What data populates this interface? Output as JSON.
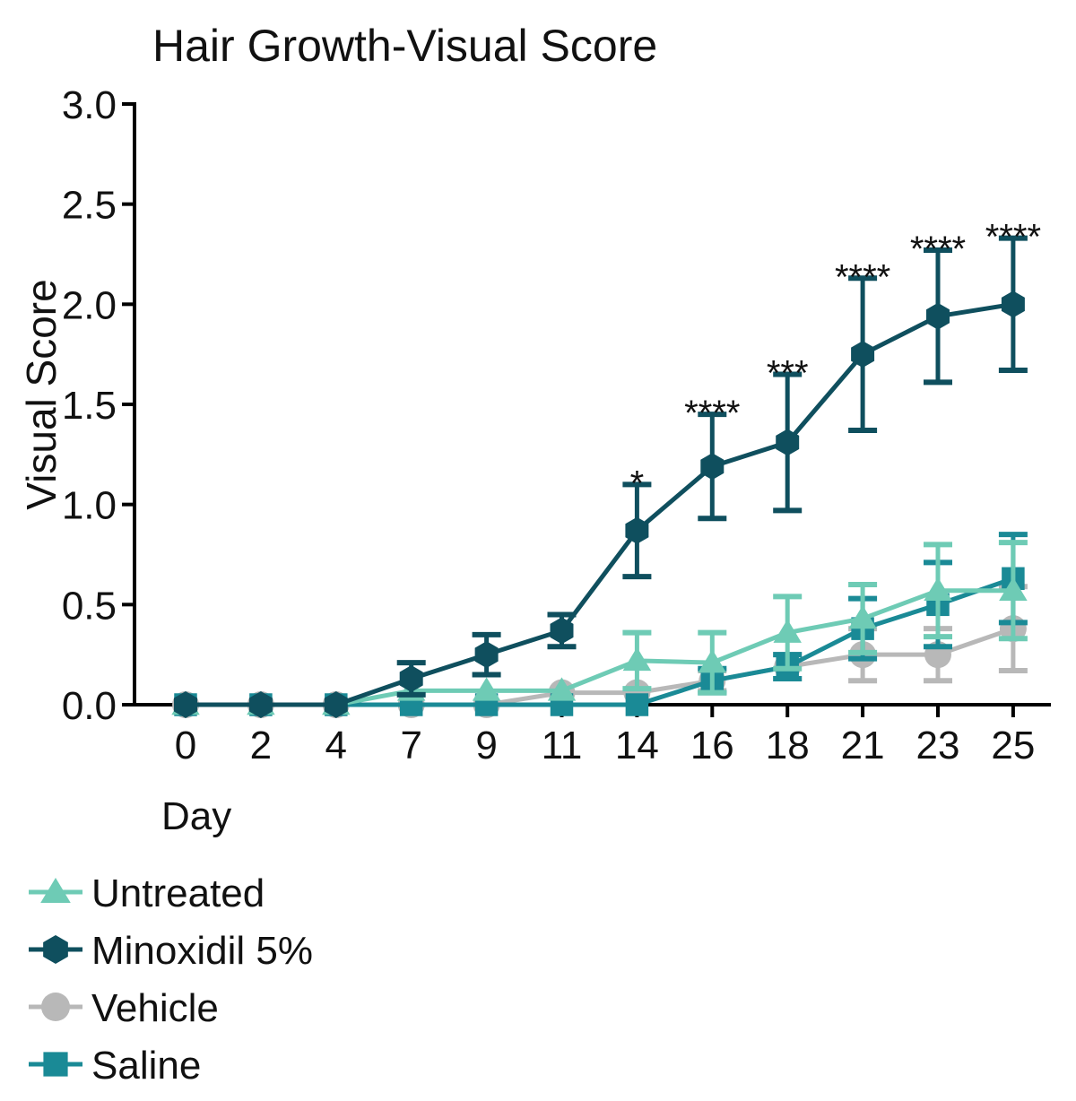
{
  "chart_data": {
    "type": "line",
    "title": "Hair Growth-Visual Score",
    "xlabel": "Day",
    "ylabel": "Visual Score",
    "ylim": [
      0,
      3.0
    ],
    "yticks": [
      "0.0",
      "0.5",
      "1.0",
      "1.5",
      "2.0",
      "2.5",
      "3.0"
    ],
    "categories": [
      "0",
      "2",
      "4",
      "7",
      "9",
      "11",
      "14",
      "16",
      "18",
      "21",
      "23",
      "25"
    ],
    "grid": false,
    "legend_position": "bottom-left",
    "significance": [
      "",
      "",
      "",
      "",
      "",
      "",
      "*",
      "****",
      "***",
      "****",
      "****",
      "****"
    ],
    "series": [
      {
        "name": "Untreated",
        "marker": "triangle",
        "color": "#6ecbb5",
        "values": [
          0,
          0,
          0,
          0.07,
          0.07,
          0.07,
          0.22,
          0.21,
          0.36,
          0.43,
          0.57,
          0.57
        ],
        "error": [
          0,
          0,
          0,
          0,
          0,
          0,
          0.14,
          0.15,
          0.18,
          0.17,
          0.23,
          0.24
        ]
      },
      {
        "name": "Minoxidil 5%",
        "marker": "hexagon",
        "color": "#0f4f5e",
        "values": [
          0,
          0,
          0,
          0.13,
          0.25,
          0.37,
          0.87,
          1.19,
          1.31,
          1.75,
          1.94,
          2.0
        ],
        "error": [
          0,
          0,
          0,
          0.08,
          0.1,
          0.08,
          0.23,
          0.26,
          0.34,
          0.38,
          0.33,
          0.33
        ]
      },
      {
        "name": "Vehicle",
        "marker": "circle",
        "color": "#b8b8b8",
        "values": [
          0,
          0,
          0,
          0,
          0,
          0.06,
          0.06,
          0.12,
          0.19,
          0.25,
          0.25,
          0.38
        ],
        "error": [
          0,
          0,
          0,
          0,
          0,
          0,
          0,
          0.05,
          0.06,
          0.13,
          0.13,
          0.21
        ]
      },
      {
        "name": "Saline",
        "marker": "square",
        "color": "#1a8a96",
        "values": [
          0,
          0,
          0,
          0,
          0,
          0,
          0,
          0.12,
          0.19,
          0.38,
          0.5,
          0.63
        ],
        "error": [
          0,
          0,
          0,
          0,
          0,
          0,
          0,
          0.06,
          0.06,
          0.15,
          0.21,
          0.22
        ]
      }
    ]
  }
}
